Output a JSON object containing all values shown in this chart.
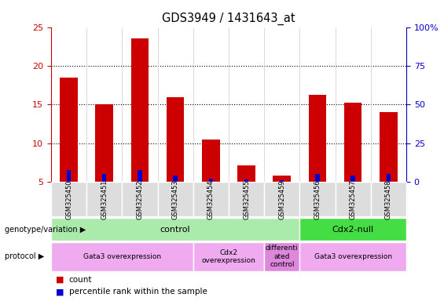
{
  "title": "GDS3949 / 1431643_at",
  "samples": [
    "GSM325450",
    "GSM325451",
    "GSM325452",
    "GSM325453",
    "GSM325454",
    "GSM325455",
    "GSM325459",
    "GSM325456",
    "GSM325457",
    "GSM325458"
  ],
  "count_values": [
    18.5,
    15.0,
    23.5,
    16.0,
    10.5,
    7.2,
    5.8,
    16.3,
    15.2,
    14.0
  ],
  "percentile_values": [
    6.5,
    6.0,
    6.5,
    5.8,
    5.4,
    5.3,
    5.2,
    6.0,
    5.8,
    6.0
  ],
  "bar_bottom": 5.0,
  "ylim_left": [
    5,
    25
  ],
  "ylim_right": [
    0,
    100
  ],
  "yticks_left": [
    5,
    10,
    15,
    20,
    25
  ],
  "ytick_labels_left": [
    "5",
    "10",
    "15",
    "20",
    "25"
  ],
  "yticks_right": [
    0,
    25,
    50,
    75,
    100
  ],
  "ytick_labels_right": [
    "0",
    "25",
    "50",
    "75",
    "100%"
  ],
  "count_color": "#cc0000",
  "percentile_color": "#0000cc",
  "genotype_groups": [
    {
      "label": "control",
      "start": 0,
      "end": 7,
      "color": "#aaeaaa"
    },
    {
      "label": "Cdx2-null",
      "start": 7,
      "end": 10,
      "color": "#44dd44"
    }
  ],
  "protocol_groups": [
    {
      "label": "Gata3 overexpression",
      "start": 0,
      "end": 4,
      "color": "#f0aaf0"
    },
    {
      "label": "Cdx2\noverexpression",
      "start": 4,
      "end": 6,
      "color": "#f0aaf0"
    },
    {
      "label": "differenti\nated\ncontrol",
      "start": 6,
      "end": 7,
      "color": "#dd88dd"
    },
    {
      "label": "Gata3 overexpression",
      "start": 7,
      "end": 10,
      "color": "#f0aaf0"
    }
  ],
  "left_tick_color": "#cc0000",
  "right_tick_color": "#0000cc",
  "bar_width": 0.5,
  "blue_bar_width": 0.12
}
